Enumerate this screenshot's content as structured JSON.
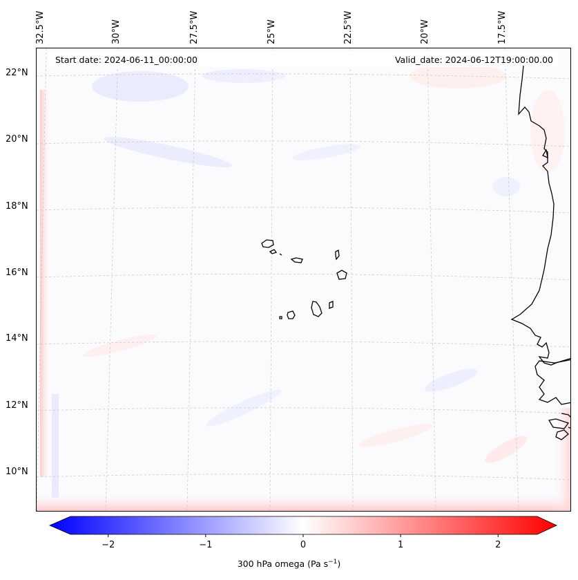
{
  "map": {
    "header_left": "Start date: 2024-06-11_00:00:00",
    "header_right": "Valid_date: 2024-06-12T19:00:00.00",
    "lon_labels": [
      "32.5°W",
      "30°W",
      "27.5°W",
      "25°W",
      "22.5°W",
      "20°W",
      "17.5°W"
    ],
    "lat_labels": [
      "22°N",
      "20°N",
      "18°N",
      "16°N",
      "14°N",
      "12°N",
      "10°N"
    ],
    "coastline_color": "#000000",
    "gridline_color": "#c8c8c8"
  },
  "colorbar": {
    "ticks": [
      "−2",
      "−1",
      "0",
      "1",
      "2"
    ],
    "label_text": "300 hPa omega (Pa s",
    "label_exponent": "−1",
    "label_close": ")",
    "min_color": "#0000ff",
    "mid_color": "#ffffff",
    "max_color": "#ff0000",
    "range": [
      -2.6,
      2.6
    ]
  }
}
